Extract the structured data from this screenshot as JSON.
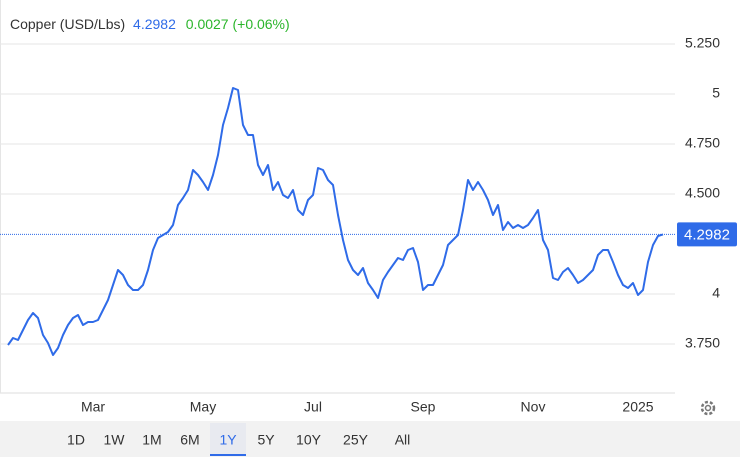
{
  "chart_data": {
    "type": "line",
    "title": "Copper (USD/Lbs)",
    "last_price": 4.2982,
    "change": "0.0027 (+0.06%)",
    "categories": [
      null,
      null,
      null,
      null,
      null,
      null,
      null,
      null,
      null,
      null,
      null,
      null,
      null,
      null,
      null,
      null,
      null,
      "Mar",
      null,
      null,
      null,
      null,
      null,
      null,
      null,
      null,
      null,
      null,
      null,
      null,
      null,
      null,
      null,
      null,
      null,
      null,
      null,
      null,
      null,
      "May",
      null,
      null,
      null,
      null,
      null,
      null,
      null,
      null,
      null,
      null,
      null,
      null,
      null,
      null,
      null,
      null,
      null,
      null,
      null,
      null,
      null,
      "Jul",
      null,
      null,
      null,
      null,
      null,
      null,
      null,
      null,
      null,
      null,
      null,
      null,
      null,
      null,
      null,
      null,
      null,
      null,
      null,
      null,
      null,
      "Sep",
      null,
      null,
      null,
      null,
      null,
      null,
      null,
      null,
      null,
      null,
      null,
      null,
      null,
      null,
      null,
      null,
      null,
      null,
      null,
      null,
      null,
      "Nov",
      null,
      null,
      null,
      null,
      null,
      null,
      null,
      null,
      null,
      null,
      null,
      null,
      null,
      null,
      null,
      null,
      null,
      null,
      null,
      null,
      "2025",
      null,
      null,
      null,
      null,
      null
    ],
    "series": [
      {
        "name": "Copper",
        "color": "#2f6be8",
        "values": [
          3.745,
          3.78,
          3.77,
          3.82,
          3.87,
          3.905,
          3.88,
          3.795,
          3.755,
          3.695,
          3.73,
          3.795,
          3.845,
          3.88,
          3.895,
          3.845,
          3.86,
          3.86,
          3.87,
          3.92,
          3.97,
          4.045,
          4.12,
          4.095,
          4.045,
          4.02,
          4.02,
          4.045,
          4.12,
          4.22,
          4.28,
          4.295,
          4.31,
          4.345,
          4.445,
          4.48,
          4.52,
          4.62,
          4.595,
          4.56,
          4.52,
          4.595,
          4.695,
          4.845,
          4.93,
          5.03,
          5.02,
          4.845,
          4.795,
          4.795,
          4.645,
          4.595,
          4.645,
          4.52,
          4.56,
          4.495,
          4.48,
          4.52,
          4.42,
          4.395,
          4.47,
          4.495,
          4.63,
          4.62,
          4.57,
          4.545,
          4.395,
          4.27,
          4.17,
          4.12,
          4.095,
          4.13,
          4.055,
          4.02,
          3.98,
          4.07,
          4.11,
          4.145,
          4.18,
          4.17,
          4.22,
          4.23,
          4.16,
          4.02,
          4.045,
          4.045,
          4.095,
          4.145,
          4.245,
          4.27,
          4.295,
          4.42,
          4.57,
          4.52,
          4.56,
          4.52,
          4.47,
          4.395,
          4.445,
          4.32,
          4.36,
          4.33,
          4.345,
          4.33,
          4.345,
          4.38,
          4.42,
          4.27,
          4.22,
          4.08,
          4.07,
          4.11,
          4.13,
          4.095,
          4.055,
          4.07,
          4.095,
          4.12,
          4.195,
          4.22,
          4.22,
          4.16,
          4.095,
          4.045,
          4.03,
          4.055,
          3.995,
          4.02,
          4.16,
          4.245,
          4.29,
          4.2982
        ]
      }
    ],
    "ylim": [
      3.505,
      5.37
    ],
    "yticks": [
      {
        "value": 3.75,
        "label": "3.750"
      },
      4,
      {
        "value": 4.5,
        "label": "4.500"
      },
      {
        "value": 4.75,
        "label": "4.750"
      },
      5,
      {
        "value": 5.25,
        "label": "5.250"
      }
    ],
    "grid": true,
    "ranges": [
      "1D",
      "1W",
      "1M",
      "6M",
      "1Y",
      "5Y",
      "10Y",
      "25Y",
      "All"
    ],
    "selected_range": "1Y"
  }
}
